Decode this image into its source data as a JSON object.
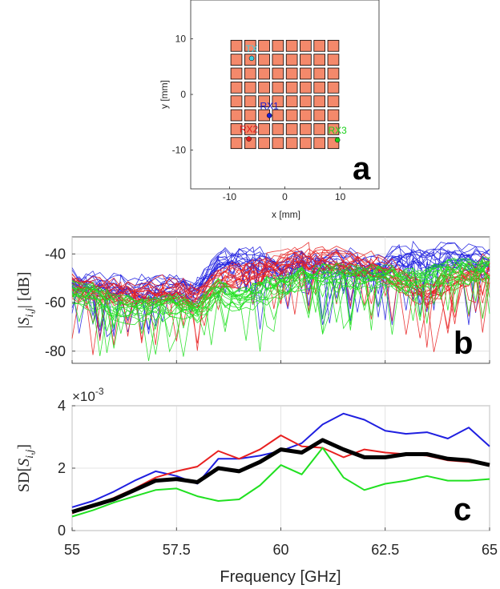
{
  "colors": {
    "tx": "#3fd0e0",
    "rx1": "#1a1ad0",
    "rx2": "#e01a1a",
    "rx3": "#1ad01a",
    "patch": "#f4896b",
    "blue": "#1f1fe0",
    "red": "#e82020",
    "green": "#20e020",
    "black": "#000000"
  },
  "chart_data": [
    {
      "id": "a",
      "type": "scatter",
      "panel_label": "a",
      "xlabel": "x [mm]",
      "ylabel": "y [mm]",
      "xlim": [
        -17,
        17
      ],
      "ylim": [
        -17,
        17
      ],
      "xticks": [
        "-10",
        "0",
        "10"
      ],
      "yticks": [
        "10",
        "0",
        "-10"
      ],
      "grid": {
        "rows": 8,
        "cols": 8,
        "x_range": [
          -10,
          10
        ],
        "y_range": [
          -10,
          10
        ]
      },
      "markers": [
        {
          "name": "TX",
          "x": -6.0,
          "y": 6.5
        },
        {
          "name": "RX1",
          "x": -2.8,
          "y": -3.8
        },
        {
          "name": "RX2",
          "x": -6.5,
          "y": -8.0
        },
        {
          "name": "RX3",
          "x": 9.5,
          "y": -8.2
        }
      ]
    },
    {
      "id": "b",
      "type": "line",
      "panel_label": "b",
      "ylabel": "|S_{i,j}| [dB]",
      "xlim": [
        55,
        65
      ],
      "ylim": [
        -85,
        -33
      ],
      "yticks": [
        "-40",
        "-60",
        "-80"
      ],
      "x": [
        55,
        55.5,
        56,
        56.5,
        57,
        57.5,
        58,
        58.5,
        59,
        59.5,
        60,
        60.5,
        61,
        61.5,
        62,
        62.5,
        63,
        63.5,
        64,
        64.5,
        65
      ],
      "series": [
        {
          "name": "blue group",
          "values": [
            -52,
            -53,
            -54,
            -55,
            -54,
            -54,
            -55,
            -44,
            -42,
            -43,
            -47,
            -42,
            -45,
            -43,
            -46,
            -44,
            -41,
            -42,
            -41,
            -42,
            -44
          ]
        },
        {
          "name": "red group",
          "values": [
            -53,
            -54,
            -55,
            -56,
            -55,
            -55,
            -57,
            -50,
            -48,
            -46,
            -43,
            -41,
            -42,
            -43,
            -44,
            -46,
            -51,
            -56,
            -50,
            -47,
            -46
          ]
        },
        {
          "name": "green group",
          "values": [
            -57,
            -58,
            -62,
            -63,
            -63,
            -62,
            -64,
            -56,
            -60,
            -56,
            -54,
            -51,
            -50,
            -50,
            -51,
            -50,
            -52,
            -50,
            -48,
            -48,
            -47
          ]
        }
      ]
    },
    {
      "id": "c",
      "type": "line",
      "panel_label": "c",
      "ylabel": "SD[S_{i,j}]",
      "xlabel": "Frequency [GHz]",
      "exponent_label": "×10",
      "exponent": "-3",
      "xlim": [
        55,
        65
      ],
      "ylim": [
        0,
        4
      ],
      "xticks": [
        "55",
        "57.5",
        "60",
        "62.5",
        "65"
      ],
      "yticks": [
        "4",
        "2",
        "0"
      ],
      "x": [
        55,
        55.5,
        56,
        56.5,
        57,
        57.5,
        58,
        58.5,
        59,
        59.5,
        60,
        60.5,
        61,
        61.5,
        62,
        62.5,
        63,
        63.5,
        64,
        64.5,
        65
      ],
      "series": [
        {
          "name": "blue",
          "color": "#1f1fe0",
          "values": [
            0.75,
            0.95,
            1.25,
            1.6,
            1.9,
            1.75,
            1.5,
            2.3,
            2.3,
            2.4,
            2.55,
            2.8,
            3.4,
            3.75,
            3.55,
            3.2,
            3.1,
            3.15,
            2.95,
            3.3,
            2.7
          ]
        },
        {
          "name": "red",
          "color": "#e82020",
          "values": [
            0.55,
            0.8,
            1.05,
            1.35,
            1.7,
            1.9,
            2.05,
            2.55,
            2.3,
            2.6,
            3.05,
            2.7,
            2.65,
            2.35,
            2.6,
            2.5,
            2.45,
            2.4,
            2.25,
            2.2,
            2.1
          ]
        },
        {
          "name": "green",
          "color": "#20e020",
          "values": [
            0.45,
            0.65,
            0.9,
            1.1,
            1.3,
            1.35,
            1.1,
            0.95,
            1.0,
            1.45,
            2.1,
            1.8,
            2.65,
            1.7,
            1.3,
            1.5,
            1.6,
            1.75,
            1.6,
            1.6,
            1.65
          ]
        },
        {
          "name": "mean",
          "color": "#000000",
          "values": [
            0.6,
            0.8,
            1.0,
            1.3,
            1.6,
            1.65,
            1.55,
            2.0,
            1.9,
            2.2,
            2.6,
            2.5,
            2.9,
            2.6,
            2.35,
            2.35,
            2.45,
            2.45,
            2.3,
            2.25,
            2.1
          ]
        }
      ]
    }
  ]
}
